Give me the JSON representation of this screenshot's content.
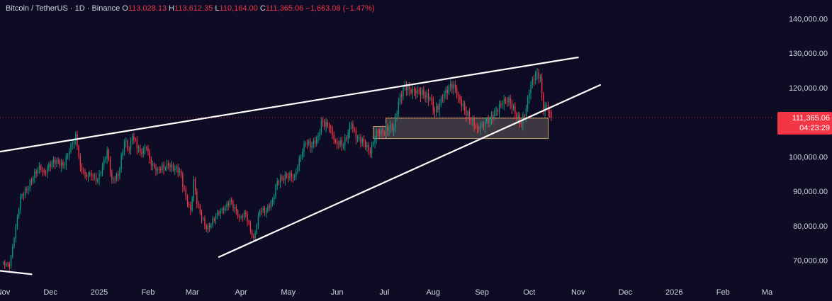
{
  "header": {
    "symbol": "Bitcoin / TetherUS · 1D · Binance",
    "open_label": "O",
    "open": "113,028.13",
    "high_label": "H",
    "high": "113,612.35",
    "low_label": "L",
    "low": "110,164.00",
    "close_label": "C",
    "close": "111,365.06",
    "change": "−1,663.08 (−1.47%)"
  },
  "price_badge": {
    "price": "111,365.06",
    "countdown": "04:23:29"
  },
  "colors": {
    "background": "#0d0c24",
    "up": "#089981",
    "down": "#f23645",
    "text": "#d1d4dc",
    "trendline": "#ffffff",
    "zone_border": "#c8a56e"
  },
  "chart_data": {
    "type": "candlestick",
    "y_axis": {
      "range": [
        64000,
        145000
      ],
      "ticks": [
        70000,
        80000,
        90000,
        100000,
        110000,
        120000,
        130000,
        140000
      ],
      "tick_labels": [
        "70,000.00",
        "80,000.00",
        "90,000.00",
        "100,000.00",
        "110,000.00",
        "120,000.00",
        "130,000.00",
        "140,000.00"
      ]
    },
    "x_axis": {
      "range": [
        "2024-10-30",
        "2026-03-08"
      ],
      "ticks": [
        "2024-11-01",
        "2024-12-01",
        "2025-01-01",
        "2025-02-01",
        "2025-03-01",
        "2025-04-01",
        "2025-05-01",
        "2025-06-01",
        "2025-07-01",
        "2025-08-01",
        "2025-09-01",
        "2025-10-01",
        "2025-11-01",
        "2025-12-01",
        "2026-01-01",
        "2026-02-01",
        "2026-03-01"
      ],
      "tick_labels": [
        "Nov",
        "Dec",
        "2025",
        "Feb",
        "Mar",
        "Apr",
        "May",
        "Jun",
        "Jul",
        "Aug",
        "Sep",
        "Oct",
        "Nov",
        "Dec",
        "2026",
        "Feb",
        "Ma"
      ]
    },
    "last_price": 111365.06,
    "series": [
      {
        "name": "BTCUSDT 1D close",
        "anchors": [
          [
            "2024-11-01",
            69500
          ],
          [
            "2024-11-05",
            68200
          ],
          [
            "2024-11-08",
            76500
          ],
          [
            "2024-11-12",
            88500
          ],
          [
            "2024-11-16",
            90500
          ],
          [
            "2024-11-20",
            94000
          ],
          [
            "2024-11-24",
            97500
          ],
          [
            "2024-11-27",
            95500
          ],
          [
            "2024-12-02",
            98500
          ],
          [
            "2024-12-05",
            99000
          ],
          [
            "2024-12-09",
            97500
          ],
          [
            "2024-12-13",
            101500
          ],
          [
            "2024-12-17",
            106500
          ],
          [
            "2024-12-20",
            97500
          ],
          [
            "2024-12-23",
            95000
          ],
          [
            "2024-12-27",
            94500
          ],
          [
            "2024-12-31",
            93500
          ],
          [
            "2025-01-03",
            97500
          ],
          [
            "2025-01-06",
            102000
          ],
          [
            "2025-01-09",
            93500
          ],
          [
            "2025-01-13",
            94500
          ],
          [
            "2025-01-17",
            104500
          ],
          [
            "2025-01-20",
            102000
          ],
          [
            "2025-01-22",
            106000
          ],
          [
            "2025-01-27",
            101500
          ],
          [
            "2025-01-31",
            102500
          ],
          [
            "2025-02-03",
            97500
          ],
          [
            "2025-02-07",
            96500
          ],
          [
            "2025-02-14",
            97500
          ],
          [
            "2025-02-21",
            96000
          ],
          [
            "2025-02-25",
            88500
          ],
          [
            "2025-02-28",
            84500
          ],
          [
            "2025-03-02",
            93500
          ],
          [
            "2025-03-04",
            86500
          ],
          [
            "2025-03-10",
            79000
          ],
          [
            "2025-03-13",
            80500
          ],
          [
            "2025-03-17",
            84000
          ],
          [
            "2025-03-21",
            84500
          ],
          [
            "2025-03-25",
            87500
          ],
          [
            "2025-03-31",
            82500
          ],
          [
            "2025-04-04",
            83500
          ],
          [
            "2025-04-07",
            78500
          ],
          [
            "2025-04-09",
            76500
          ],
          [
            "2025-04-13",
            84500
          ],
          [
            "2025-04-17",
            84500
          ],
          [
            "2025-04-21",
            87500
          ],
          [
            "2025-04-24",
            93000
          ],
          [
            "2025-04-30",
            94500
          ],
          [
            "2025-05-05",
            94500
          ],
          [
            "2025-05-08",
            99500
          ],
          [
            "2025-05-12",
            104000
          ],
          [
            "2025-05-16",
            103500
          ],
          [
            "2025-05-20",
            106000
          ],
          [
            "2025-05-22",
            110500
          ],
          [
            "2025-05-27",
            108500
          ],
          [
            "2025-05-31",
            104500
          ],
          [
            "2025-06-05",
            103500
          ],
          [
            "2025-06-10",
            109500
          ],
          [
            "2025-06-13",
            105500
          ],
          [
            "2025-06-18",
            104500
          ],
          [
            "2025-06-22",
            101000
          ],
          [
            "2025-06-26",
            107500
          ],
          [
            "2025-06-30",
            107000
          ],
          [
            "2025-07-04",
            108500
          ],
          [
            "2025-07-07",
            108500
          ],
          [
            "2025-07-10",
            116000
          ],
          [
            "2025-07-14",
            121000
          ],
          [
            "2025-07-18",
            118500
          ],
          [
            "2025-07-22",
            119500
          ],
          [
            "2025-07-26",
            118000
          ],
          [
            "2025-07-30",
            117000
          ],
          [
            "2025-08-02",
            113000
          ],
          [
            "2025-08-07",
            117000
          ],
          [
            "2025-08-11",
            120500
          ],
          [
            "2025-08-14",
            121000
          ],
          [
            "2025-08-17",
            117500
          ],
          [
            "2025-08-21",
            113500
          ],
          [
            "2025-08-25",
            110500
          ],
          [
            "2025-08-29",
            108500
          ],
          [
            "2025-09-01",
            109500
          ],
          [
            "2025-09-06",
            111000
          ],
          [
            "2025-09-10",
            113500
          ],
          [
            "2025-09-14",
            115500
          ],
          [
            "2025-09-18",
            117000
          ],
          [
            "2025-09-22",
            112500
          ],
          [
            "2025-09-26",
            109500
          ],
          [
            "2025-09-29",
            114000
          ],
          [
            "2025-10-01",
            118500
          ],
          [
            "2025-10-03",
            122500
          ],
          [
            "2025-10-06",
            124500
          ],
          [
            "2025-10-08",
            123000
          ],
          [
            "2025-10-10",
            113000
          ],
          [
            "2025-10-12",
            115000
          ],
          [
            "2025-10-14",
            113028
          ],
          [
            "2025-10-15",
            111365
          ]
        ]
      }
    ],
    "trendlines": [
      {
        "name": "upper-resistance",
        "from": [
          "2024-10-30",
          101500
        ],
        "to": [
          "2025-11-01",
          128800
        ]
      },
      {
        "name": "lower-support",
        "from": [
          "2025-03-18",
          71000
        ],
        "to": [
          "2025-11-15",
          120800
        ]
      },
      {
        "name": "old-support",
        "from": [
          "2024-10-30",
          67000
        ],
        "to": [
          "2024-11-19",
          66000
        ]
      }
    ],
    "zones": [
      {
        "name": "demand-zone",
        "from": [
          "2025-07-02",
          111200
        ],
        "to": [
          "2025-10-13",
          105300
        ]
      },
      {
        "name": "demand-zone-extension",
        "from": [
          "2025-06-24",
          108800
        ],
        "to": [
          "2025-07-02",
          105300
        ]
      }
    ],
    "grid": false,
    "last_price_line": true
  }
}
